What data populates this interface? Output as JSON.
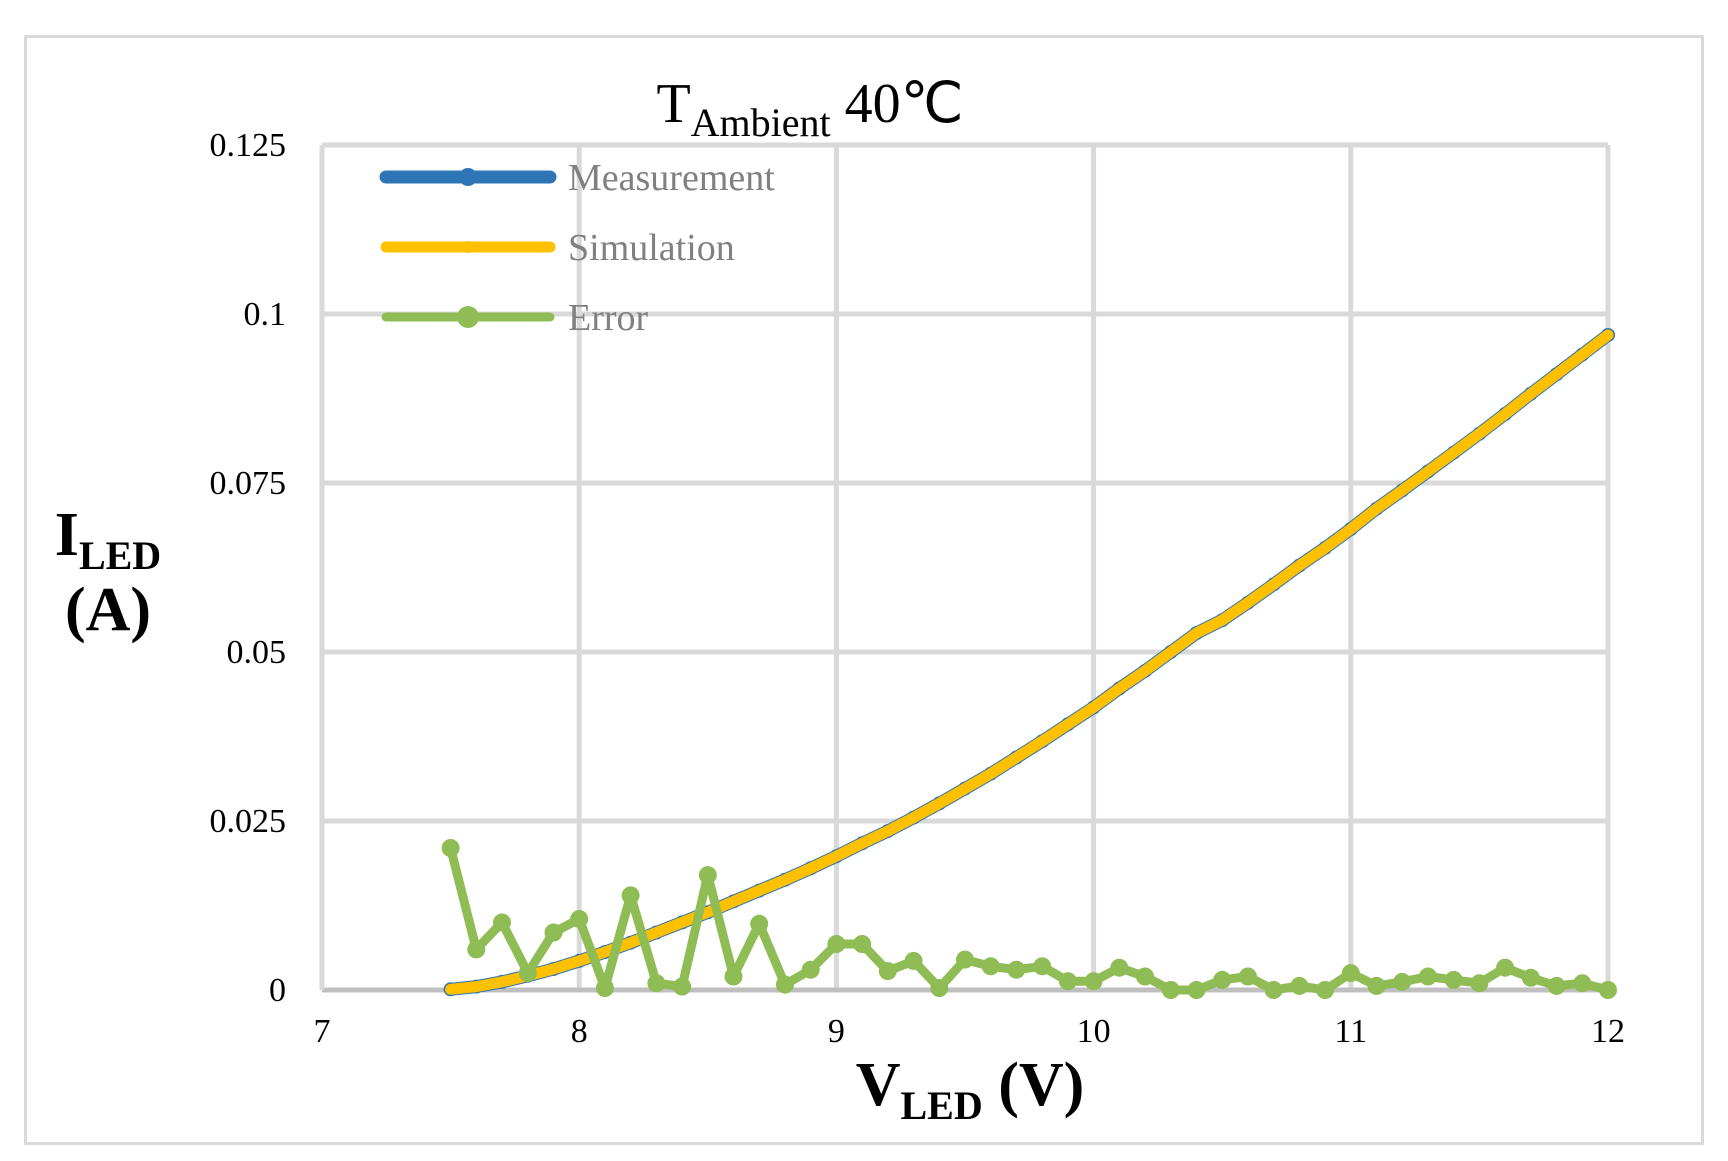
{
  "chart_data": {
    "type": "line",
    "title": {
      "main": "T",
      "sub": "Ambient",
      "suffix": " 40℃"
    },
    "xlabel": {
      "main": "V",
      "sub": "LED",
      "suffix": " (V)"
    },
    "ylabel": {
      "main": "I",
      "sub": "LED",
      "line2": "(A)"
    },
    "xlim": [
      7,
      12
    ],
    "ylim": [
      0,
      0.125
    ],
    "xticks": [
      "7",
      "8",
      "9",
      "10",
      "11",
      "12"
    ],
    "yticks": [
      "0",
      "0.025",
      "0.05",
      "0.075",
      "0.1",
      "0.125"
    ],
    "grid": true,
    "legend_position": "top-left",
    "x": [
      7.5,
      7.6,
      7.7,
      7.8,
      7.9,
      8.0,
      8.1,
      8.2,
      8.3,
      8.4,
      8.5,
      8.6,
      8.7,
      8.8,
      8.9,
      9.0,
      9.1,
      9.2,
      9.3,
      9.4,
      9.5,
      9.6,
      9.7,
      9.8,
      9.9,
      10.0,
      10.1,
      10.2,
      10.3,
      10.4,
      10.5,
      10.6,
      10.7,
      10.8,
      10.9,
      11.0,
      11.1,
      11.2,
      11.3,
      11.4,
      11.5,
      11.6,
      11.7,
      11.8,
      11.9,
      12.0
    ],
    "series": [
      {
        "name": "Measurement",
        "color": "#2e75b6",
        "values": [
          0.0001,
          0.0005,
          0.0012,
          0.0021,
          0.0031,
          0.0043,
          0.0056,
          0.007,
          0.0085,
          0.01,
          0.0115,
          0.0131,
          0.0147,
          0.0163,
          0.018,
          0.0198,
          0.0217,
          0.0235,
          0.0255,
          0.0276,
          0.0298,
          0.032,
          0.0344,
          0.0368,
          0.0393,
          0.0418,
          0.0446,
          0.0472,
          0.05,
          0.0528,
          0.0547,
          0.0573,
          0.06,
          0.0628,
          0.0654,
          0.0682,
          0.0712,
          0.0739,
          0.0767,
          0.0795,
          0.0823,
          0.0852,
          0.0882,
          0.0911,
          0.094,
          0.0969
        ]
      },
      {
        "name": "Simulation",
        "color": "#ffc000",
        "values": [
          0.0001,
          0.0005,
          0.0012,
          0.0021,
          0.0031,
          0.0043,
          0.0056,
          0.007,
          0.0085,
          0.01,
          0.0115,
          0.0131,
          0.0147,
          0.0163,
          0.018,
          0.0198,
          0.0217,
          0.0235,
          0.0255,
          0.0276,
          0.0298,
          0.032,
          0.0344,
          0.0368,
          0.0393,
          0.0418,
          0.0446,
          0.0472,
          0.05,
          0.0528,
          0.0547,
          0.0573,
          0.06,
          0.0628,
          0.0654,
          0.0682,
          0.0712,
          0.0739,
          0.0767,
          0.0795,
          0.0823,
          0.0852,
          0.0882,
          0.0911,
          0.094,
          0.0969
        ]
      },
      {
        "name": "Error",
        "color": "#8fbc55",
        "values": [
          0.021,
          0.006,
          0.01,
          0.0025,
          0.0085,
          0.0105,
          0.0003,
          0.014,
          0.001,
          0.0005,
          0.017,
          0.002,
          0.0098,
          0.0008,
          0.003,
          0.0068,
          0.0068,
          0.0028,
          0.0043,
          0.0003,
          0.0045,
          0.0035,
          0.003,
          0.0035,
          0.0013,
          0.0013,
          0.0033,
          0.002,
          0.0,
          0.0,
          0.0015,
          0.002,
          0.0,
          0.0006,
          0.0,
          0.0025,
          0.0006,
          0.0012,
          0.002,
          0.0015,
          0.001,
          0.0033,
          0.0018,
          0.0006,
          0.001,
          0.0
        ]
      }
    ]
  }
}
